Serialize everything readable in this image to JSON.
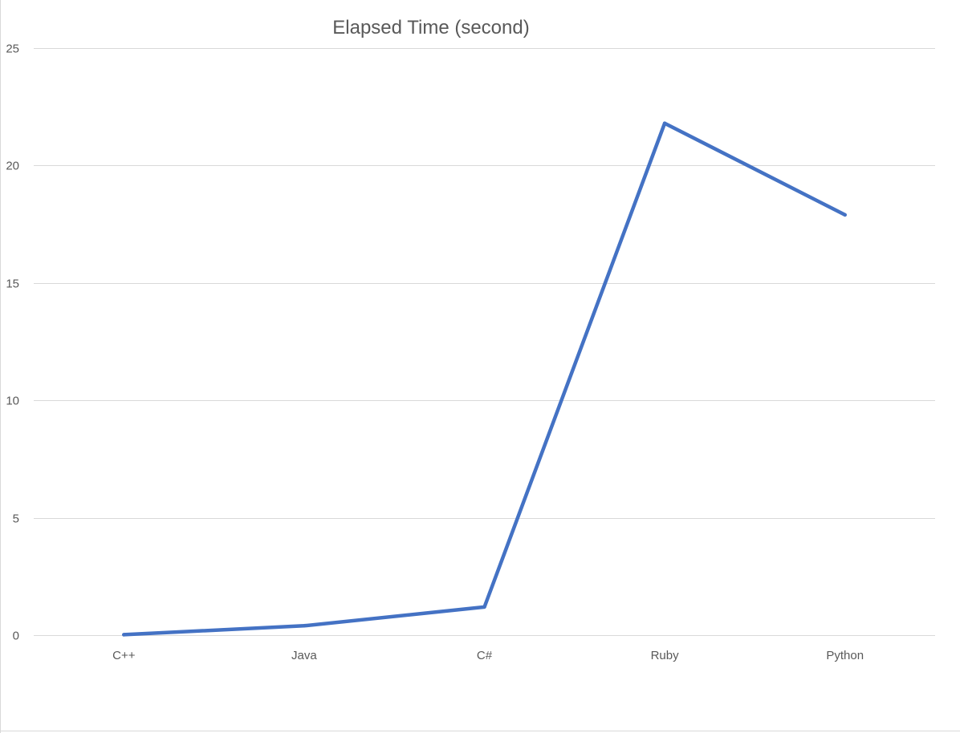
{
  "chart_data": {
    "type": "line",
    "title": "Elapsed Time (second)",
    "categories": [
      "C++",
      "Java",
      "C#",
      "Ruby",
      "Python"
    ],
    "series": [
      {
        "values": [
          0.02,
          0.4,
          1.2,
          21.8,
          17.9
        ]
      }
    ],
    "y_ticks": [
      "0",
      "5",
      "10",
      "15",
      "20",
      "25"
    ],
    "ylim": [
      0,
      25
    ],
    "grid": true,
    "legend": "none"
  },
  "colors": {
    "series": "#4472c4",
    "grid": "#d9d9d9",
    "text": "#595959"
  }
}
